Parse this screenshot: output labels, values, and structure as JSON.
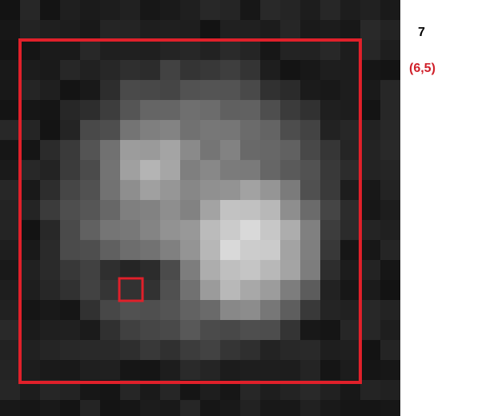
{
  "label": "7",
  "coordinate": "(6,5)"
}
